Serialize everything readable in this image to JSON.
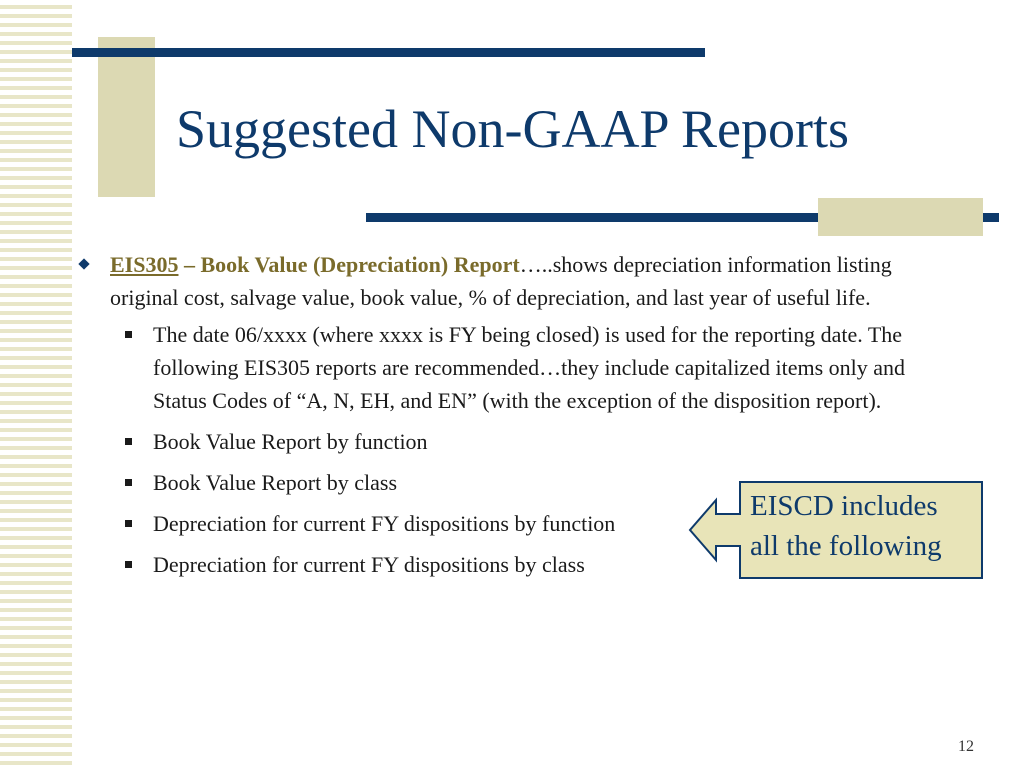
{
  "slide": {
    "title": "Suggested Non-GAAP Reports",
    "page_number": "12",
    "main_bullet": {
      "link_text": "EIS305",
      "bold_text": " – Book Value (Depreciation) Report",
      "body_text": "…..shows depreciation information listing original cost, salvage value, book value, % of depreciation, and last year of useful life."
    },
    "sub_bullets": [
      "The date 06/xxxx (where xxxx is FY being closed) is used for the reporting date. The following EIS305 reports are recommended…they include capitalized items only and Status Codes of “A, N, EH, and EN” (with the exception of the disposition report).",
      "Book Value Report by function",
      "Book Value Report by class",
      "Depreciation for current FY dispositions by function",
      "Depreciation for current FY dispositions by class"
    ],
    "callout": {
      "line1": "EISCD includes",
      "line2": "all the following"
    }
  },
  "colors": {
    "navy": "#0e3a6b",
    "tan": "#dcd9b3",
    "callout_fill": "#e8e4b8",
    "accent": "#7a6b2b"
  }
}
